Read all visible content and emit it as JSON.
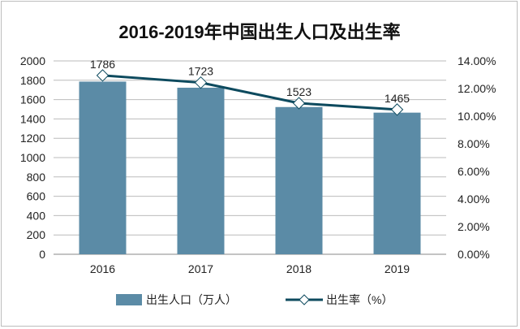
{
  "chart_data": {
    "type": "bar+line",
    "title": "2016-2019年中国出生人口及出生率",
    "categories": [
      "2016",
      "2017",
      "2018",
      "2019"
    ],
    "series": [
      {
        "name": "出生人口（万人）",
        "type": "bar",
        "axis": "left",
        "values": [
          1786,
          1723,
          1523,
          1465
        ],
        "color": "#5b8ba6"
      },
      {
        "name": "出生率（%）",
        "type": "line",
        "axis": "right",
        "values": [
          12.95,
          12.43,
          10.94,
          10.48
        ],
        "color": "#0d4a5e",
        "marker": "diamond"
      }
    ],
    "data_labels": [
      "1786",
      "1723",
      "1523",
      "1465"
    ],
    "y_left": {
      "range": [
        0,
        2000
      ],
      "step": 200,
      "ticks": [
        "0",
        "200",
        "400",
        "600",
        "800",
        "1000",
        "1200",
        "1400",
        "1600",
        "1800",
        "2000"
      ]
    },
    "y_right": {
      "range": [
        0,
        14
      ],
      "step": 2,
      "ticks": [
        "0.00%",
        "2.00%",
        "4.00%",
        "6.00%",
        "8.00%",
        "10.00%",
        "12.00%",
        "14.00%"
      ]
    },
    "grid": true,
    "legend": "bottom"
  }
}
